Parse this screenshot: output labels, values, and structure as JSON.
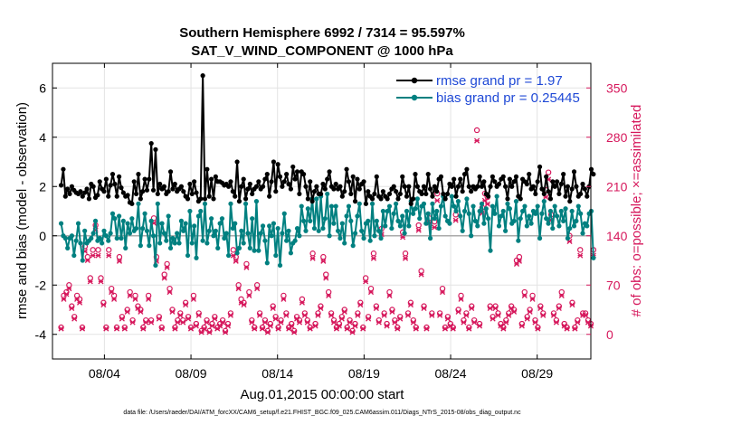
{
  "chart_data": {
    "type": "line",
    "title": "Southern Hemisphere 6992 / 7314 = 95.597%",
    "subtitle": "SAT_V_WIND_COMPONENT @ 1000 hPa",
    "xlabel": "Aug.01,2015 00:00:00 start",
    "ylabel": "rmse and bias (model - observation)",
    "y2label": "# of obs: o=possible; ×=assimilated",
    "footnote": "data file: /Users/raeder/DAI/ATM_forcXX/CAM6_setup/f.e21.FHIST_BGC.f09_025.CAM6assim.011/Diags_NTrS_2015-08/obs_diag_output.nc",
    "xlim": [
      0.5,
      31.6
    ],
    "ylim": [
      -5,
      7
    ],
    "y2lim": [
      -35,
      385
    ],
    "x_ticks": [
      3.5,
      8.5,
      13.5,
      18.5,
      23.5,
      28.5
    ],
    "x_tick_labels": [
      "08/04",
      "08/09",
      "08/14",
      "08/19",
      "08/24",
      "08/29"
    ],
    "y_ticks": [
      -4,
      -2,
      0,
      2,
      4,
      6
    ],
    "y2_ticks": [
      0,
      70,
      140,
      210,
      280,
      350
    ],
    "grid": true,
    "legend_position": "top-right",
    "colors": {
      "rmse": "#000000",
      "bias": "#008080",
      "obs": "#d6185c",
      "zero_line": "#aaaaaa",
      "legend_text": "#1f49d6"
    },
    "series": [
      {
        "name": "rmse grand pr = 1.97",
        "axis": "left",
        "values": [
          2.05,
          2.7,
          1.6,
          1.9,
          1.7,
          2.0,
          1.85,
          1.75,
          1.7,
          1.8,
          1.6,
          1.75,
          1.9,
          1.5,
          2.1,
          2.0,
          1.55,
          1.65,
          2.2,
          1.9,
          1.8,
          2.3,
          1.6,
          2.05,
          2.5,
          2.1,
          1.6,
          2.4,
          1.95,
          1.75,
          1.6,
          1.65,
          1.35,
          1.3,
          2.2,
          1.7,
          2.5,
          1.5,
          1.8,
          2.3,
          1.85,
          2.3,
          3.75,
          1.85,
          3.5,
          1.7,
          2.1,
          1.9,
          2.0,
          1.7,
          1.8,
          2.6,
          1.9,
          2.1,
          1.8,
          1.9,
          2.0,
          1.8,
          1.6,
          1.5,
          2.1,
          1.7,
          2.2,
          1.75,
          1.4,
          1.5,
          6.5,
          1.5,
          2.7,
          1.6,
          2.3,
          1.5,
          2.4,
          2.2,
          2.2,
          2.15,
          2.05,
          2.1,
          2.0,
          2.2,
          1.8,
          1.6,
          3.0,
          1.4,
          2.0,
          2.3,
          1.5,
          1.9,
          2.1,
          1.7,
          1.9,
          2.0,
          2.2,
          1.9,
          2.0,
          2.3,
          2.5,
          1.6,
          2.2,
          3.0,
          1.8,
          2.9,
          2.4,
          2.0,
          2.2,
          2.5,
          2.1,
          1.9,
          2.8,
          2.3,
          2.6,
          1.7,
          2.6,
          2.5,
          2.0,
          1.5,
          2.2,
          1.4,
          1.8,
          2.0,
          1.7,
          1.7,
          2.1,
          1.9,
          2.3,
          2.6,
          2.0,
          1.9,
          2.1,
          1.9,
          2.0,
          1.6,
          1.8,
          2.7,
          2.2,
          1.7,
          2.4,
          1.4,
          2.3,
          1.9,
          2.1,
          2.2,
          1.3,
          1.8,
          1.6,
          1.5,
          1.7,
          2.4,
          1.6,
          1.5,
          1.8,
          1.6,
          1.5,
          1.7,
          1.9,
          2.0,
          1.8,
          1.5,
          1.7,
          2.4,
          2.0,
          1.6,
          2.0,
          1.3,
          1.5,
          2.5,
          2.0,
          1.8,
          1.7,
          2.0,
          1.7,
          2.5,
          1.9,
          1.6,
          2.0,
          1.8,
          2.3,
          2.4,
          1.7,
          1.5,
          1.7,
          2.1,
          2.0,
          2.3,
          1.6,
          2.0,
          2.3,
          1.8,
          2.5,
          2.7,
          2.0,
          1.8,
          2.0,
          1.9,
          2.0,
          2.4,
          2.0,
          2.2,
          1.7,
          1.6,
          2.0,
          2.4,
          2.2,
          2.0,
          2.1,
          2.3,
          2.4,
          2.0,
          1.5,
          2.3,
          2.0,
          2.2,
          2.4,
          1.6,
          1.5,
          2.3,
          2.2,
          2.1,
          2.5,
          1.9,
          2.0,
          1.7,
          2.2,
          2.8,
          1.9,
          1.7,
          2.4,
          1.8,
          1.5,
          2.2,
          2.0,
          2.2,
          1.7,
          2.1,
          2.5,
          1.6,
          2.0,
          1.4,
          1.9,
          2.6,
          2.0,
          1.6,
          1.7,
          2.1,
          1.9,
          1.6,
          2.0,
          2.7,
          2.5
        ]
      },
      {
        "name": "bias grand pr = 0.25445",
        "axis": "left",
        "values": [
          0.5,
          0.0,
          -0.1,
          -0.5,
          -0.1,
          0.0,
          -0.8,
          -0.2,
          0.5,
          -0.3,
          -1.0,
          0.2,
          -0.3,
          -0.2,
          -0.1,
          0.1,
          0.6,
          -0.2,
          -0.1,
          -0.3,
          0.2,
          0.0,
          -0.2,
          0.1,
          0.9,
          0.7,
          -0.1,
          0.8,
          -0.1,
          0.6,
          -0.5,
          0.5,
          0.1,
          0.7,
          0.2,
          0.3,
          1.3,
          -0.4,
          0.3,
          0.9,
          0.2,
          -0.4,
          0.6,
          0.0,
          -1.2,
          1.3,
          -0.3,
          0.5,
          0.1,
          -0.2,
          0.8,
          -0.5,
          -0.1,
          -0.3,
          0.1,
          -0.3,
          0.6,
          0.2,
          0.5,
          -0.8,
          1.0,
          -0.3,
          0.4,
          -0.9,
          0.8,
          1.0,
          -0.2,
          1.3,
          -0.3,
          0.2,
          0.7,
          0.0,
          0.2,
          -0.5,
          0.5,
          0.7,
          -0.1,
          0.1,
          -0.8,
          1.3,
          0.3,
          0.5,
          -0.7,
          -0.5,
          0.2,
          -0.3,
          1.3,
          0.1,
          -0.5,
          0.7,
          -0.6,
          1.4,
          -0.6,
          0.1,
          0.4,
          -0.2,
          -1.1,
          0.4,
          0.0,
          0.5,
          -0.8,
          0.3,
          -1.2,
          0.1,
          0.9,
          -0.2,
          0.2,
          -0.7,
          -0.3,
          -0.2,
          0.3,
          0.0,
          1.2,
          0.6,
          0.2,
          1.1,
          0.6,
          1.5,
          0.3,
          1.5,
          0.2,
          1.6,
          0.3,
          0.7,
          1.7,
          0.0,
          1.2,
          0.5,
          1.2,
          0.2,
          -0.1,
          0.5,
          -0.3,
          0.8,
          1.2,
          0.6,
          -0.4,
          0.1,
          0.8,
          1.3,
          0.2,
          -0.1,
          0.5,
          0.6,
          -0.2,
          1.3,
          0.0,
          0.6,
          0.2,
          -0.1,
          1.0,
          0.4,
          1.0,
          1.2,
          0.3,
          0.9,
          1.3,
          0.6,
          0.4,
          0.8,
          0.1,
          1.0,
          0.4,
          1.4,
          0.9,
          1.1,
          1.5,
          0.7,
          1.2,
          1.3,
          0.5,
          0.9,
          -0.1,
          1.3,
          0.7,
          1.0,
          0.3,
          1.2,
          1.6,
          0.8,
          0.6,
          0.5,
          1.6,
          1.2,
          1.0,
          1.4,
          0.8,
          0.2,
          1.0,
          1.5,
          0.9,
          0.0,
          1.2,
          0.6,
          0.4,
          1.0,
          1.3,
          0.5,
          1.1,
          0.7,
          -0.6,
          1.2,
          0.9,
          1.6,
          0.4,
          0.8,
          1.0,
          0.2,
          1.3,
          1.1,
          0.5,
          0.6,
          1.4,
          -0.2,
          0.7,
          1.0,
          1.2,
          0.4,
          0.8,
          0.5,
          1.0,
          0.9,
          1.2,
          -0.1,
          0.9,
          1.4,
          0.7,
          0.5,
          1.0,
          0.3,
          1.2,
          0.8,
          0.4,
          1.0,
          0.6,
          1.1,
          -0.1,
          0.3,
          1.0,
          0.4,
          0.6,
          1.2,
          0.9,
          0.1,
          0.5,
          0.4,
          0.9,
          1.0,
          -0.9
        ]
      },
      {
        "name": "possible",
        "axis": "right",
        "values": [
          10,
          55,
          60,
          70,
          40,
          25,
          55,
          50,
          10,
          125,
          110,
          80,
          120,
          155,
          120,
          80,
          45,
          10,
          120,
          65,
          55,
          10,
          110,
          25,
          10,
          35,
          60,
          20,
          55,
          40,
          35,
          10,
          20,
          55,
          20,
          165,
          110,
          25,
          10,
          85,
          100,
          65,
          35,
          10,
          20,
          30,
          20,
          45,
          25,
          10,
          55,
          15,
          30,
          5,
          10,
          20,
          5,
          15,
          25,
          10,
          15,
          20,
          5,
          15,
          30,
          120,
          110,
          70,
          50,
          45,
          100,
          60,
          20,
          10,
          70,
          30,
          10,
          20,
          5,
          15,
          40,
          25,
          10,
          20,
          55,
          30,
          10,
          15,
          5,
          25,
          20,
          50,
          30,
          20,
          10,
          115,
          15,
          30,
          40,
          110,
          85,
          60,
          30,
          20,
          10,
          15,
          25,
          35,
          10,
          20,
          5,
          15,
          30,
          45,
          10,
          80,
          25,
          65,
          115,
          40,
          20,
          150,
          30,
          15,
          60,
          35,
          20,
          10,
          25,
          145,
          115,
          30,
          45,
          20,
          10,
          155,
          90,
          40,
          10,
          165,
          30,
          160,
          200,
          30,
          65,
          10,
          25,
          15,
          10,
          170,
          35,
          55,
          20,
          30,
          10,
          40,
          20,
          290,
          15,
          180,
          200,
          195,
          40,
          25,
          40,
          30,
          15,
          10,
          20,
          30,
          40,
          35,
          105,
          110,
          15,
          60,
          25,
          35,
          55,
          20,
          10,
          40,
          30,
          205,
          230,
          170,
          30,
          20,
          40,
          60,
          15,
          10,
          140,
          45,
          10,
          20,
          120,
          30,
          30,
          20,
          15,
          120
        ]
      },
      {
        "name": "assimilated",
        "axis": "right",
        "values": [
          8,
          50,
          57,
          65,
          37,
          22,
          50,
          45,
          8,
          118,
          105,
          75,
          112,
          148,
          112,
          75,
          42,
          8,
          112,
          60,
          50,
          8,
          104,
          22,
          8,
          32,
          55,
          17,
          50,
          37,
          32,
          8,
          17,
          50,
          17,
          158,
          104,
          22,
          8,
          80,
          95,
          60,
          32,
          8,
          17,
          27,
          17,
          42,
          22,
          8,
          50,
          12,
          27,
          3,
          8,
          17,
          3,
          12,
          22,
          8,
          12,
          17,
          3,
          12,
          27,
          112,
          104,
          65,
          45,
          42,
          95,
          55,
          17,
          8,
          65,
          27,
          8,
          17,
          3,
          12,
          37,
          22,
          8,
          17,
          50,
          27,
          8,
          12,
          3,
          22,
          17,
          45,
          27,
          17,
          8,
          108,
          12,
          27,
          37,
          104,
          80,
          55,
          27,
          17,
          8,
          12,
          22,
          32,
          8,
          17,
          3,
          12,
          27,
          42,
          8,
          75,
          22,
          60,
          108,
          37,
          17,
          142,
          27,
          12,
          55,
          32,
          17,
          8,
          22,
          138,
          108,
          27,
          42,
          17,
          8,
          148,
          85,
          37,
          8,
          158,
          27,
          152,
          190,
          27,
          60,
          8,
          22,
          12,
          8,
          162,
          32,
          50,
          17,
          27,
          8,
          37,
          17,
          275,
          12,
          172,
          190,
          185,
          37,
          22,
          37,
          27,
          12,
          8,
          17,
          27,
          37,
          32,
          100,
          104,
          12,
          55,
          22,
          32,
          50,
          17,
          8,
          37,
          27,
          195,
          220,
          162,
          27,
          17,
          37,
          55,
          12,
          8,
          132,
          42,
          8,
          17,
          112,
          27,
          27,
          17,
          12,
          112
        ]
      }
    ]
  }
}
